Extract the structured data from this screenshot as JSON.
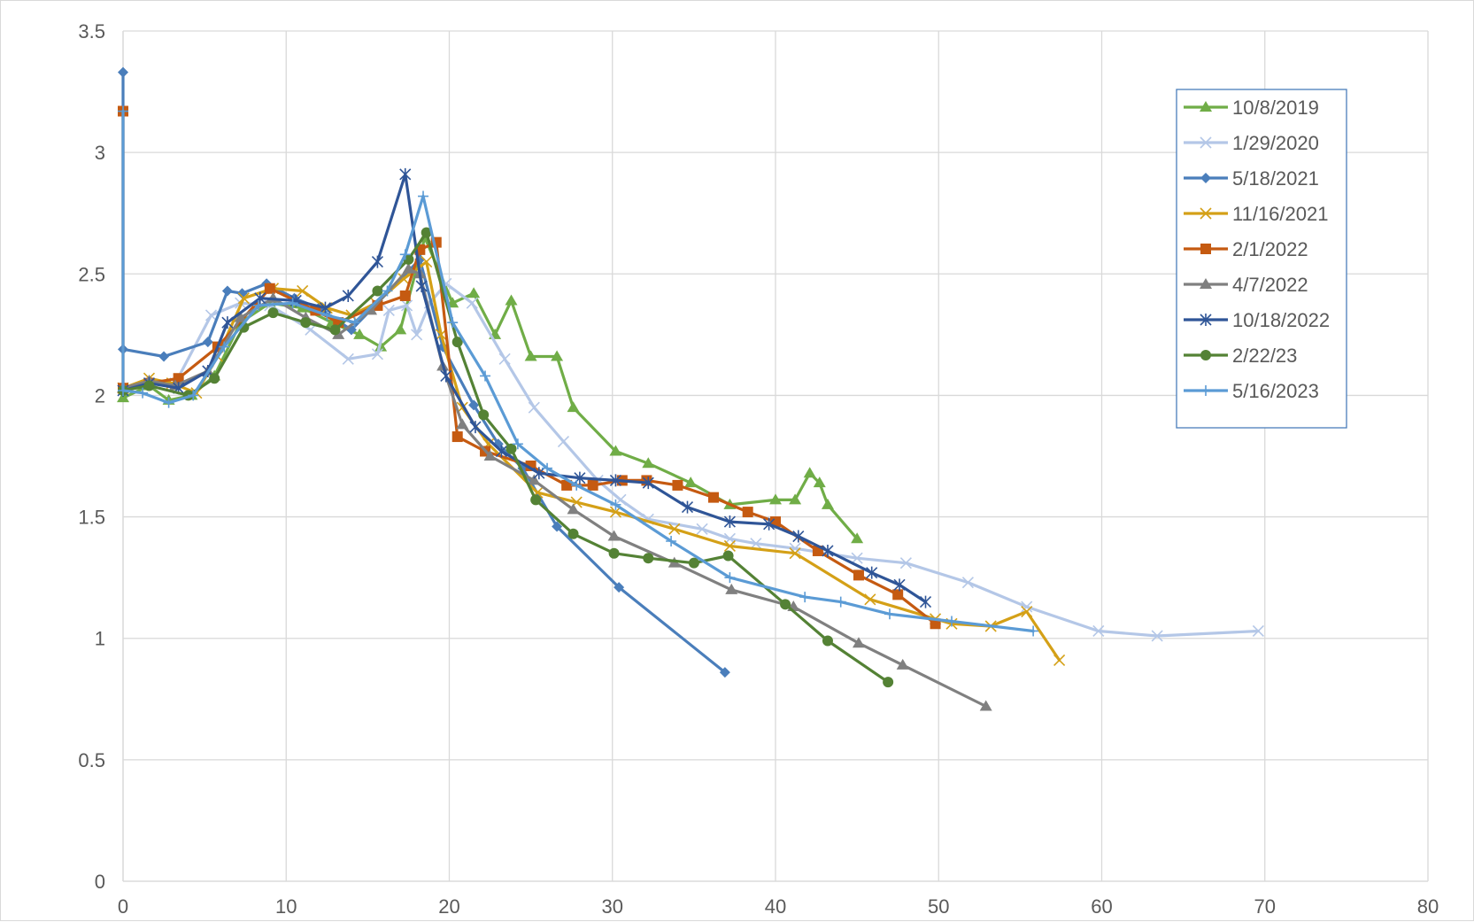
{
  "chart_data": {
    "type": "scatter",
    "title": "",
    "xlabel": "",
    "ylabel": "",
    "xlim": [
      0,
      80
    ],
    "ylim": [
      0,
      3.5
    ],
    "x_ticks": [
      "0",
      "10",
      "20",
      "30",
      "40",
      "50",
      "60",
      "70",
      "80"
    ],
    "y_ticks": [
      "0",
      "0.5",
      "1",
      "1.5",
      "2",
      "2.5",
      "3",
      "3.5"
    ],
    "grid": true,
    "legend_position": "top-right",
    "series": [
      {
        "name": "10/8/2019",
        "color": "#70ad47",
        "marker": "triangle",
        "points": [
          [
            0,
            1.99
          ],
          [
            1.6,
            2.04
          ],
          [
            2.8,
            1.98
          ],
          [
            4.2,
            2.0
          ],
          [
            5.6,
            2.08
          ],
          [
            7.2,
            2.3
          ],
          [
            9,
            2.38
          ],
          [
            11,
            2.36
          ],
          [
            12.8,
            2.3
          ],
          [
            14.5,
            2.25
          ],
          [
            15.8,
            2.2
          ],
          [
            17,
            2.27
          ],
          [
            18.5,
            2.65
          ],
          [
            20.2,
            2.38
          ],
          [
            21.5,
            2.42
          ],
          [
            22.8,
            2.25
          ],
          [
            23.8,
            2.39
          ],
          [
            25,
            2.16
          ],
          [
            26.6,
            2.16
          ],
          [
            27.6,
            1.95
          ],
          [
            30.2,
            1.77
          ],
          [
            32.2,
            1.72
          ],
          [
            34.8,
            1.64
          ],
          [
            37.2,
            1.55
          ],
          [
            40,
            1.57
          ],
          [
            41.2,
            1.57
          ],
          [
            42.1,
            1.68
          ],
          [
            42.7,
            1.64
          ],
          [
            43.2,
            1.55
          ],
          [
            45,
            1.41
          ]
        ]
      },
      {
        "name": "1/29/2020",
        "color": "#b4c7e7",
        "marker": "x",
        "points": [
          [
            0,
            2.02
          ],
          [
            1.6,
            2.05
          ],
          [
            3.2,
            2.05
          ],
          [
            5.4,
            2.33
          ],
          [
            7.2,
            2.38
          ],
          [
            9,
            2.37
          ],
          [
            11.5,
            2.27
          ],
          [
            13.8,
            2.15
          ],
          [
            15.6,
            2.17
          ],
          [
            16.3,
            2.35
          ],
          [
            17.4,
            2.37
          ],
          [
            18,
            2.25
          ],
          [
            18.8,
            2.38
          ],
          [
            19.8,
            2.46
          ],
          [
            21.4,
            2.38
          ],
          [
            23.4,
            2.15
          ],
          [
            25.2,
            1.95
          ],
          [
            27,
            1.81
          ],
          [
            29.1,
            1.65
          ],
          [
            30.5,
            1.57
          ],
          [
            32.2,
            1.49
          ],
          [
            35.5,
            1.45
          ],
          [
            37.2,
            1.41
          ],
          [
            38.8,
            1.39
          ],
          [
            41.2,
            1.37
          ],
          [
            45,
            1.33
          ],
          [
            48,
            1.31
          ],
          [
            51.8,
            1.23
          ],
          [
            55.4,
            1.13
          ],
          [
            59.8,
            1.03
          ],
          [
            63.4,
            1.01
          ],
          [
            69.6,
            1.03
          ]
        ]
      },
      {
        "name": "5/18/2021",
        "color": "#4a7ebb",
        "marker": "diamond",
        "points": [
          [
            0,
            3.33
          ],
          [
            0,
            2.19
          ],
          [
            2.5,
            2.16
          ],
          [
            5.2,
            2.22
          ],
          [
            6.4,
            2.43
          ],
          [
            7.3,
            2.42
          ],
          [
            8.8,
            2.46
          ],
          [
            10.5,
            2.4
          ],
          [
            12,
            2.36
          ],
          [
            14,
            2.27
          ],
          [
            18.2,
            2.56
          ],
          [
            19.6,
            2.2
          ],
          [
            21.5,
            1.96
          ],
          [
            23,
            1.8
          ],
          [
            24.5,
            1.7
          ],
          [
            26.6,
            1.46
          ],
          [
            30.4,
            1.21
          ],
          [
            36.9,
            0.86
          ]
        ]
      },
      {
        "name": "11/16/2021",
        "color": "#d4a017",
        "marker": "x",
        "points": [
          [
            0,
            2.03
          ],
          [
            1.6,
            2.07
          ],
          [
            3,
            2.05
          ],
          [
            4.5,
            2.01
          ],
          [
            5.8,
            2.16
          ],
          [
            7.4,
            2.4
          ],
          [
            9.2,
            2.44
          ],
          [
            11,
            2.43
          ],
          [
            12.5,
            2.36
          ],
          [
            14,
            2.33
          ],
          [
            15.5,
            2.38
          ],
          [
            17.2,
            2.48
          ],
          [
            18.6,
            2.55
          ],
          [
            19.5,
            2.25
          ],
          [
            20.8,
            1.95
          ],
          [
            22.4,
            1.8
          ],
          [
            25.4,
            1.6
          ],
          [
            27.8,
            1.56
          ],
          [
            30.2,
            1.52
          ],
          [
            33.8,
            1.45
          ],
          [
            37.2,
            1.38
          ],
          [
            41.2,
            1.35
          ],
          [
            45.8,
            1.16
          ],
          [
            49.8,
            1.08
          ],
          [
            50.8,
            1.06
          ],
          [
            53.2,
            1.05
          ],
          [
            55.4,
            1.11
          ],
          [
            57.4,
            0.91
          ]
        ]
      },
      {
        "name": "2/1/2022",
        "color": "#c55a11",
        "marker": "square",
        "points": [
          [
            0,
            3.17
          ],
          [
            0,
            2.03
          ],
          [
            1.6,
            2.05
          ],
          [
            3.4,
            2.07
          ],
          [
            5.8,
            2.2
          ],
          [
            9,
            2.44
          ],
          [
            11.8,
            2.35
          ],
          [
            13.2,
            2.3
          ],
          [
            15.6,
            2.37
          ],
          [
            17.3,
            2.41
          ],
          [
            18.2,
            2.6
          ],
          [
            19.2,
            2.63
          ],
          [
            20.5,
            1.83
          ],
          [
            22.2,
            1.77
          ],
          [
            25,
            1.71
          ],
          [
            27.2,
            1.63
          ],
          [
            28.8,
            1.63
          ],
          [
            30.6,
            1.65
          ],
          [
            32.1,
            1.65
          ],
          [
            34,
            1.63
          ],
          [
            36.2,
            1.58
          ],
          [
            38.3,
            1.52
          ],
          [
            40,
            1.48
          ],
          [
            42.6,
            1.36
          ],
          [
            45.1,
            1.26
          ],
          [
            47.5,
            1.18
          ],
          [
            49.8,
            1.06
          ]
        ]
      },
      {
        "name": "4/7/2022",
        "color": "#808080",
        "marker": "triangle",
        "points": [
          [
            0,
            2.03
          ],
          [
            1.6,
            2.06
          ],
          [
            3.2,
            2.04
          ],
          [
            5.2,
            2.1
          ],
          [
            7.2,
            2.32
          ],
          [
            9.2,
            2.4
          ],
          [
            11.2,
            2.32
          ],
          [
            13.2,
            2.25
          ],
          [
            15.2,
            2.35
          ],
          [
            17.5,
            2.52
          ],
          [
            18.2,
            2.5
          ],
          [
            19.6,
            2.12
          ],
          [
            20.8,
            1.88
          ],
          [
            22.5,
            1.75
          ],
          [
            25.2,
            1.65
          ],
          [
            27.6,
            1.53
          ],
          [
            30.1,
            1.42
          ],
          [
            33.8,
            1.31
          ],
          [
            37.3,
            1.2
          ],
          [
            41.1,
            1.13
          ],
          [
            45.1,
            0.98
          ],
          [
            47.8,
            0.89
          ],
          [
            52.9,
            0.72
          ]
        ]
      },
      {
        "name": "10/18/2022",
        "color": "#2f5597",
        "marker": "star",
        "points": [
          [
            0,
            2.02
          ],
          [
            1.6,
            2.05
          ],
          [
            3.4,
            2.03
          ],
          [
            5.2,
            2.1
          ],
          [
            6.4,
            2.3
          ],
          [
            8.4,
            2.4
          ],
          [
            10.6,
            2.39
          ],
          [
            12.4,
            2.36
          ],
          [
            13.8,
            2.41
          ],
          [
            15.6,
            2.55
          ],
          [
            17.3,
            2.91
          ],
          [
            18.3,
            2.45
          ],
          [
            19.8,
            2.08
          ],
          [
            21.6,
            1.87
          ],
          [
            23.2,
            1.77
          ],
          [
            25.5,
            1.68
          ],
          [
            28,
            1.66
          ],
          [
            30.2,
            1.65
          ],
          [
            32.2,
            1.64
          ],
          [
            34.6,
            1.54
          ],
          [
            37.2,
            1.48
          ],
          [
            39.6,
            1.47
          ],
          [
            41.4,
            1.42
          ],
          [
            43.2,
            1.36
          ],
          [
            45.9,
            1.27
          ],
          [
            47.6,
            1.22
          ],
          [
            49.2,
            1.15
          ]
        ]
      },
      {
        "name": "2/22/23",
        "color": "#548235",
        "marker": "circle",
        "points": [
          [
            0,
            2.02
          ],
          [
            1.6,
            2.04
          ],
          [
            4,
            2.0
          ],
          [
            5.6,
            2.07
          ],
          [
            7.4,
            2.28
          ],
          [
            9.2,
            2.34
          ],
          [
            11.2,
            2.3
          ],
          [
            13,
            2.27
          ],
          [
            15.6,
            2.43
          ],
          [
            17.5,
            2.56
          ],
          [
            18.6,
            2.67
          ],
          [
            20.5,
            2.22
          ],
          [
            22.1,
            1.92
          ],
          [
            23.8,
            1.78
          ],
          [
            25.3,
            1.57
          ],
          [
            27.6,
            1.43
          ],
          [
            30.1,
            1.35
          ],
          [
            32.2,
            1.33
          ],
          [
            35,
            1.31
          ],
          [
            37.1,
            1.34
          ],
          [
            40.6,
            1.14
          ],
          [
            43.2,
            0.99
          ],
          [
            46.9,
            0.82
          ]
        ]
      },
      {
        "name": "5/16/2023",
        "color": "#5b9bd5",
        "marker": "plus",
        "points": [
          [
            0,
            3.17
          ],
          [
            0,
            2.02
          ],
          [
            1.2,
            2.01
          ],
          [
            2.8,
            1.97
          ],
          [
            4.3,
            2.0
          ],
          [
            6.2,
            2.2
          ],
          [
            8.3,
            2.37
          ],
          [
            10.4,
            2.38
          ],
          [
            12.5,
            2.33
          ],
          [
            14.2,
            2.3
          ],
          [
            16.2,
            2.43
          ],
          [
            17.3,
            2.58
          ],
          [
            18.4,
            2.82
          ],
          [
            20.2,
            2.3
          ],
          [
            22.2,
            2.08
          ],
          [
            24.2,
            1.8
          ],
          [
            26,
            1.7
          ],
          [
            27.8,
            1.63
          ],
          [
            30.2,
            1.55
          ],
          [
            33.6,
            1.4
          ],
          [
            37.2,
            1.25
          ],
          [
            41.8,
            1.17
          ],
          [
            44,
            1.15
          ],
          [
            47,
            1.1
          ],
          [
            50.8,
            1.07
          ],
          [
            55.8,
            1.03
          ]
        ]
      }
    ]
  }
}
